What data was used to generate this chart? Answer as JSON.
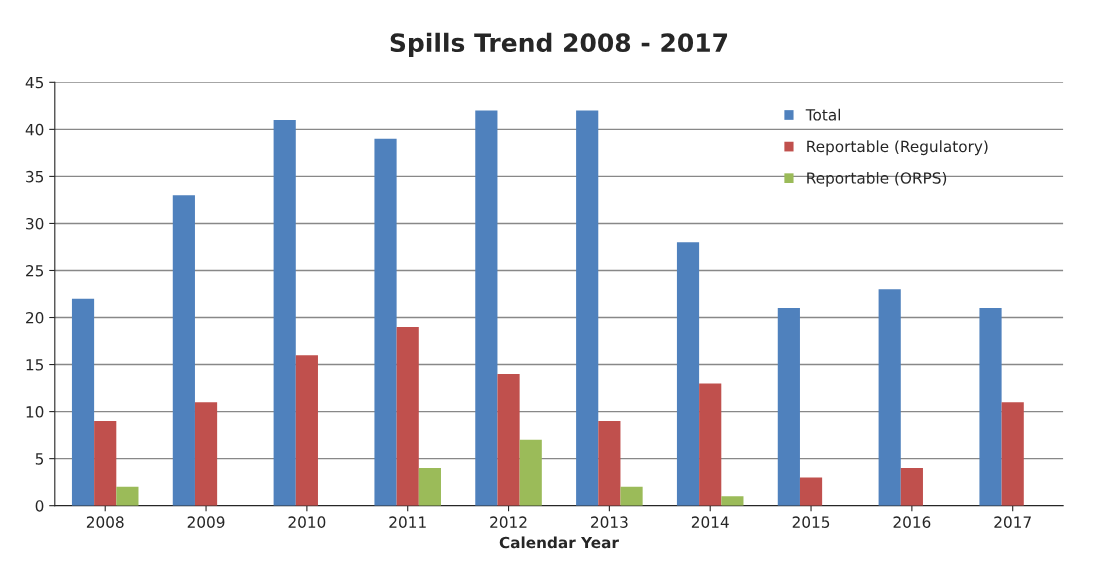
{
  "chart_data": {
    "type": "bar",
    "title": "Spills Trend 2008 - 2017",
    "xlabel": "Calendar Year",
    "categories": [
      "2008",
      "2009",
      "2010",
      "2011",
      "2012",
      "2013",
      "2014",
      "2015",
      "2016",
      "2017"
    ],
    "series": [
      {
        "name": "Total",
        "color": "#4f81bd",
        "values": [
          22,
          33,
          41,
          39,
          42,
          42,
          28,
          21,
          23,
          21
        ]
      },
      {
        "name": "Reportable (Regulatory)",
        "color": "#c0504d",
        "values": [
          9,
          11,
          16,
          19,
          14,
          9,
          13,
          3,
          4,
          11
        ]
      },
      {
        "name": "Reportable (ORPS)",
        "color": "#9bbb59",
        "values": [
          2,
          null,
          null,
          4,
          7,
          2,
          1,
          null,
          null,
          null
        ]
      }
    ],
    "ylim": [
      0,
      45
    ],
    "yticks": [
      0,
      5,
      10,
      15,
      20,
      25,
      30,
      35,
      40,
      45
    ],
    "grid": "y",
    "legend": "top right"
  }
}
